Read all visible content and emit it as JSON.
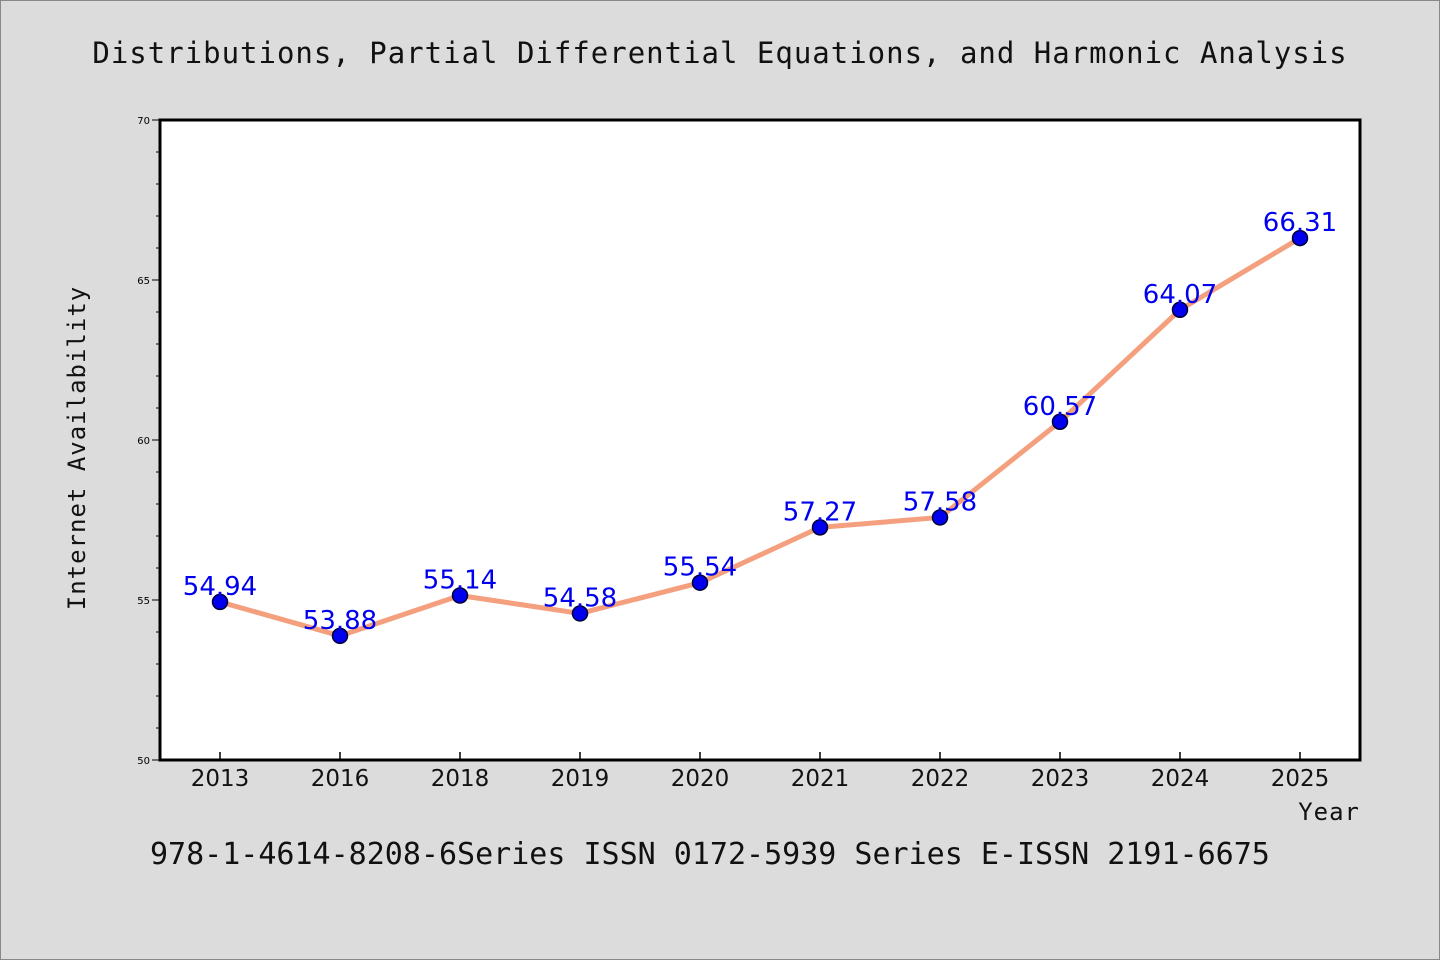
{
  "chart_data": {
    "type": "line",
    "title": "Distributions, Partial Differential Equations, and Harmonic Analysis",
    "xlabel": "Year",
    "ylabel": "Internet Availability",
    "categories": [
      "2013",
      "2016",
      "2018",
      "2019",
      "2020",
      "2021",
      "2022",
      "2023",
      "2024",
      "2025"
    ],
    "series": [
      {
        "values": [
          54.94,
          53.88,
          55.14,
          54.58,
          55.54,
          57.27,
          57.58,
          60.57,
          64.07,
          66.31
        ]
      }
    ],
    "data_labels": [
      "54.94",
      "53.88",
      "55.14",
      "54.58",
      "55.54",
      "57.27",
      "57.58",
      "60.57",
      "64.07",
      "66.31"
    ],
    "ylim": [
      50,
      70
    ],
    "yticks": [
      50,
      55,
      60,
      65,
      70
    ],
    "grid": false,
    "legend": "none",
    "colors": {
      "line": "#f4a07e",
      "marker": "#0000ee",
      "marker_edge": "#000033",
      "label": "#0000ee",
      "background": "#dcdcdc",
      "plot_background": "#ffffff"
    }
  },
  "footer": "978-1-4614-8208-6Series ISSN 0172-5939 Series E-ISSN 2191-6675"
}
